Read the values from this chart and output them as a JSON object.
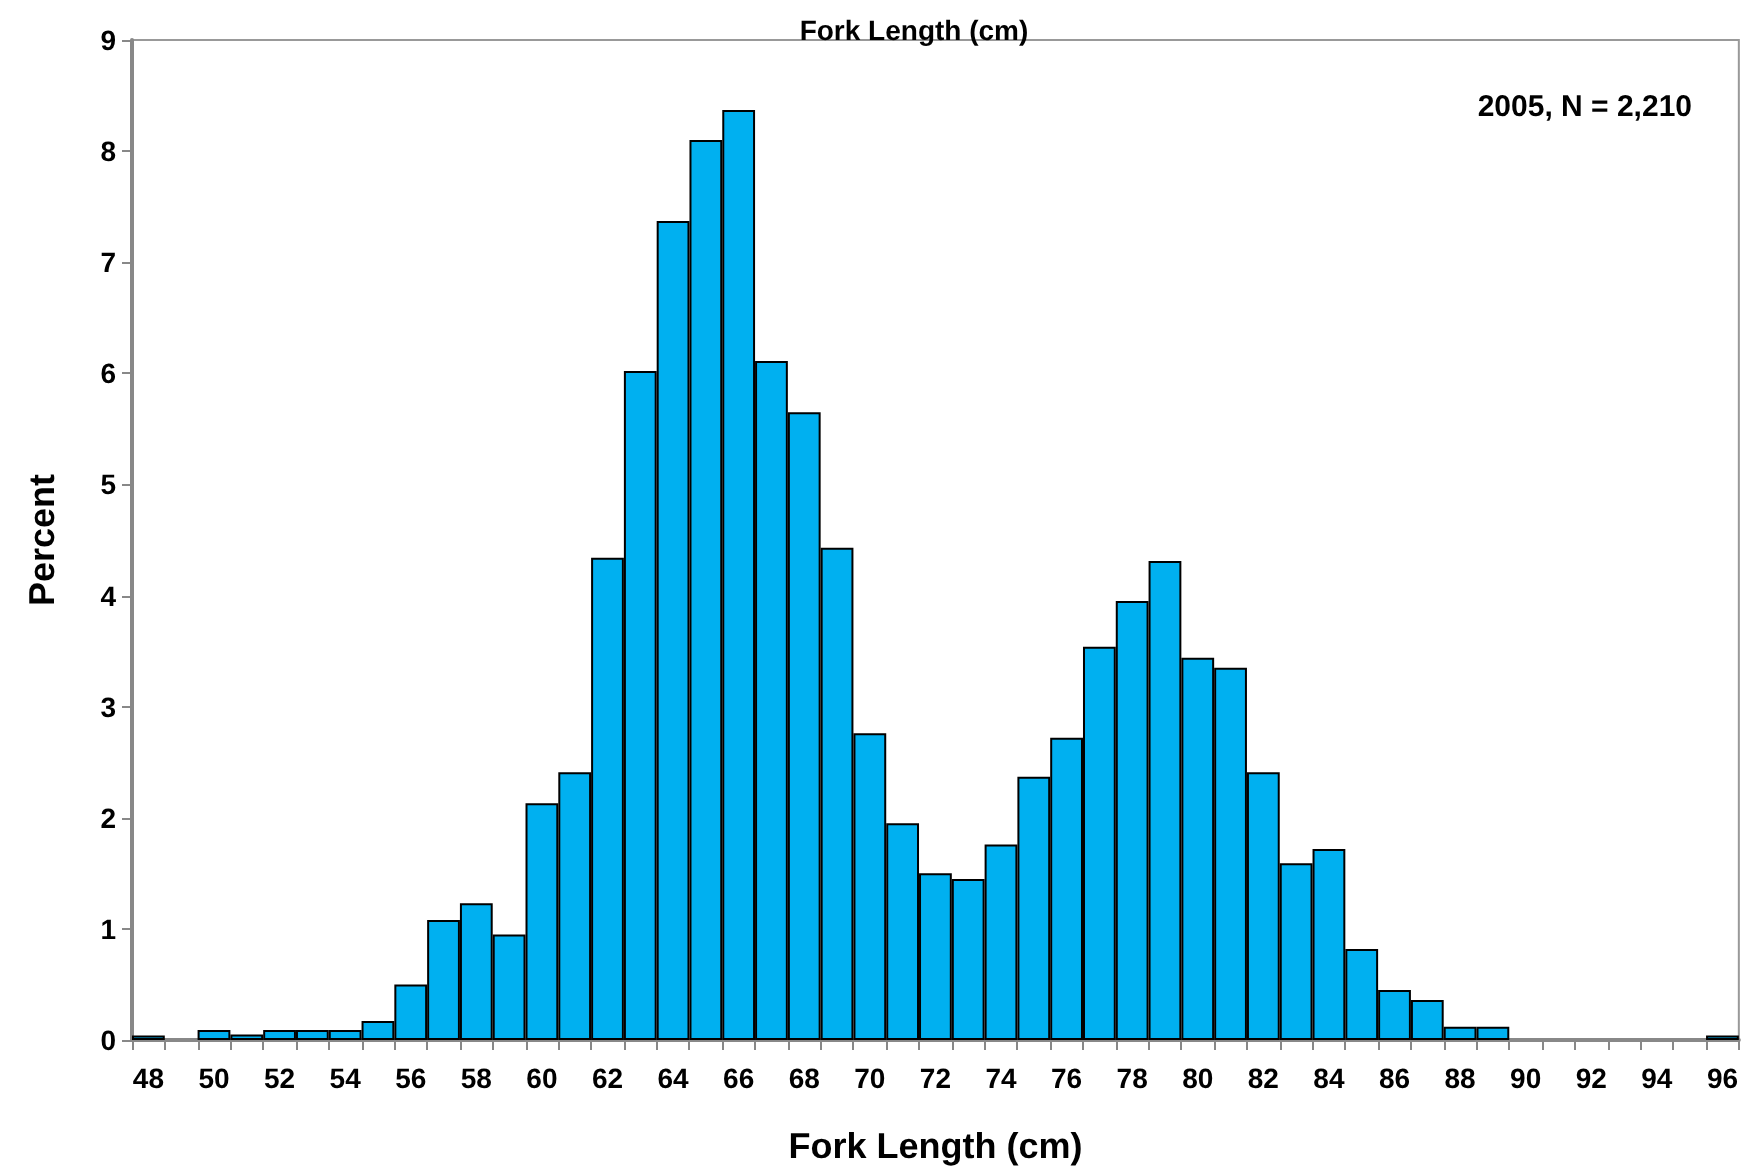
{
  "chart_data": {
    "type": "bar",
    "title": "Fork Length (cm)",
    "xlabel": "Fork Length (cm)",
    "ylabel": "Percent",
    "annotations": [
      "2005, N = 2,210"
    ],
    "categories": [
      "48",
      null,
      "50",
      null,
      "52",
      null,
      "54",
      null,
      "56",
      null,
      "58",
      null,
      "60",
      null,
      "62",
      null,
      "64",
      null,
      "66",
      null,
      "68",
      null,
      "70",
      null,
      "72",
      null,
      "74",
      null,
      "76",
      null,
      "78",
      null,
      "80",
      null,
      "82",
      null,
      "84",
      null,
      "86",
      null,
      "88",
      null,
      "90",
      null,
      "92",
      null,
      "94",
      null,
      "96"
    ],
    "values": [
      0.04,
      0,
      0.09,
      0.05,
      0.09,
      0.09,
      0.09,
      0.17,
      0.5,
      1.08,
      1.23,
      0.95,
      2.13,
      2.41,
      4.34,
      6.02,
      7.37,
      8.1,
      8.37,
      6.11,
      5.65,
      4.43,
      2.76,
      1.95,
      1.5,
      1.45,
      1.76,
      2.37,
      2.72,
      3.54,
      3.95,
      4.31,
      3.44,
      3.35,
      2.41,
      1.59,
      1.72,
      0.82,
      0.45,
      0.36,
      0.12,
      0.12,
      0,
      0,
      0,
      0,
      0,
      0,
      0.04
    ],
    "color": "#00b0f0",
    "ylim": [
      0,
      9
    ],
    "yticks": [
      0,
      1,
      2,
      3,
      4,
      5,
      6,
      7,
      8,
      9
    ],
    "grid": false
  }
}
